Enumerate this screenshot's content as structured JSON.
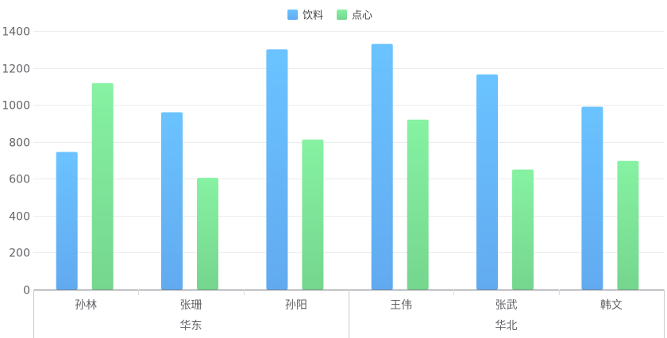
{
  "chart_data": {
    "type": "bar",
    "title": "",
    "xlabel": "",
    "ylabel": "",
    "ylim": [
      0,
      1400
    ],
    "yticks": [
      0,
      200,
      400,
      600,
      800,
      1000,
      1200,
      1400
    ],
    "grid": true,
    "legend_position": "top-center",
    "categories": [
      "孙林",
      "张珊",
      "孙阳",
      "王伟",
      "张武",
      "韩文"
    ],
    "groups": [
      {
        "label": "华东",
        "categories": [
          "孙林",
          "张珊",
          "孙阳"
        ]
      },
      {
        "label": "华北",
        "categories": [
          "王伟",
          "张武",
          "韩文"
        ]
      }
    ],
    "series": [
      {
        "name": "饮料",
        "values": [
          745,
          960,
          1300,
          1330,
          1165,
          990
        ],
        "color_top": "#6ac3ff",
        "color_bottom": "#62aaf0"
      },
      {
        "name": "点心",
        "values": [
          1118,
          605,
          812,
          920,
          650,
          697
        ],
        "color_top": "#86f2a2",
        "color_bottom": "#75d68e"
      }
    ]
  }
}
